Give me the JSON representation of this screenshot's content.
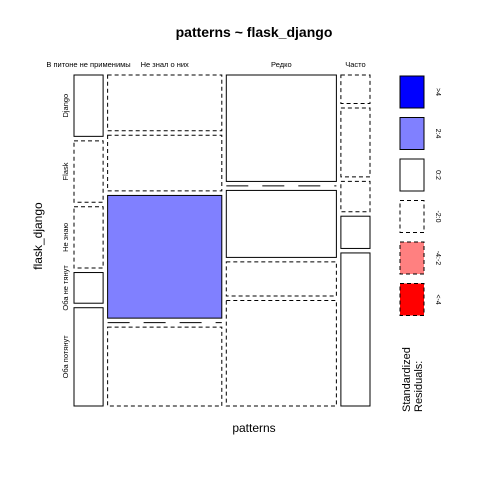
{
  "chart_data": {
    "type": "mosaic",
    "title": "patterns ~ flask_django",
    "xlabel": "patterns",
    "ylabel": "flask_django",
    "columns": [
      {
        "label": "В питоне не применимы",
        "share": 0.078
      },
      {
        "label": "Не знал о них",
        "share": 0.306
      },
      {
        "label": "Редко",
        "share": 0.295
      },
      {
        "label": "Часто",
        "share": 0.078
      }
    ],
    "rows": [
      "Django",
      "Flask",
      "Не знаю",
      "Оба не тянут",
      "Оба потянут"
    ],
    "cells": [
      [
        {
          "share": 0.196,
          "residual": "0:2"
        },
        {
          "share": 0.196,
          "residual": "-2:0"
        },
        {
          "share": 0.196,
          "residual": "-2:0"
        },
        {
          "share": 0.098,
          "residual": "0:2"
        },
        {
          "share": 0.314,
          "residual": "0:2"
        }
      ],
      [
        {
          "share": 0.178,
          "residual": "-2:0"
        },
        {
          "share": 0.178,
          "residual": "-2:0"
        },
        {
          "share": 0.392,
          "residual": "2:4"
        },
        {
          "share": 0.0,
          "residual": "-2:0"
        },
        {
          "share": 0.252,
          "residual": "-2:0"
        }
      ],
      [
        {
          "share": 0.34,
          "residual": "0:2"
        },
        {
          "share": 0.0,
          "residual": "-2:0"
        },
        {
          "share": 0.214,
          "residual": "0:2"
        },
        {
          "share": 0.109,
          "residual": "-2:0"
        },
        {
          "share": 0.337,
          "residual": "-2:0"
        }
      ],
      [
        {
          "share": 0.091,
          "residual": "-2:0"
        },
        {
          "share": 0.22,
          "residual": "-2:0"
        },
        {
          "share": 0.097,
          "residual": "-2:0"
        },
        {
          "share": 0.103,
          "residual": "0:2"
        },
        {
          "share": 0.489,
          "residual": "0:2"
        }
      ]
    ],
    "legend": {
      "title": "Standardized\nResiduals:",
      "position": "right",
      "items": [
        {
          "label": ">4",
          "fill": "#0000ff",
          "dashed": false
        },
        {
          "label": "2:4",
          "fill": "#8080ff",
          "dashed": false
        },
        {
          "label": "0:2",
          "fill": "#ffffff",
          "dashed": false
        },
        {
          "label": "-2:0",
          "fill": "#ffffff",
          "dashed": true
        },
        {
          "label": "-4:-2",
          "fill": "#ff8080",
          "dashed": true
        },
        {
          "label": "<-4",
          "fill": "#ff0000",
          "dashed": true
        }
      ]
    }
  }
}
